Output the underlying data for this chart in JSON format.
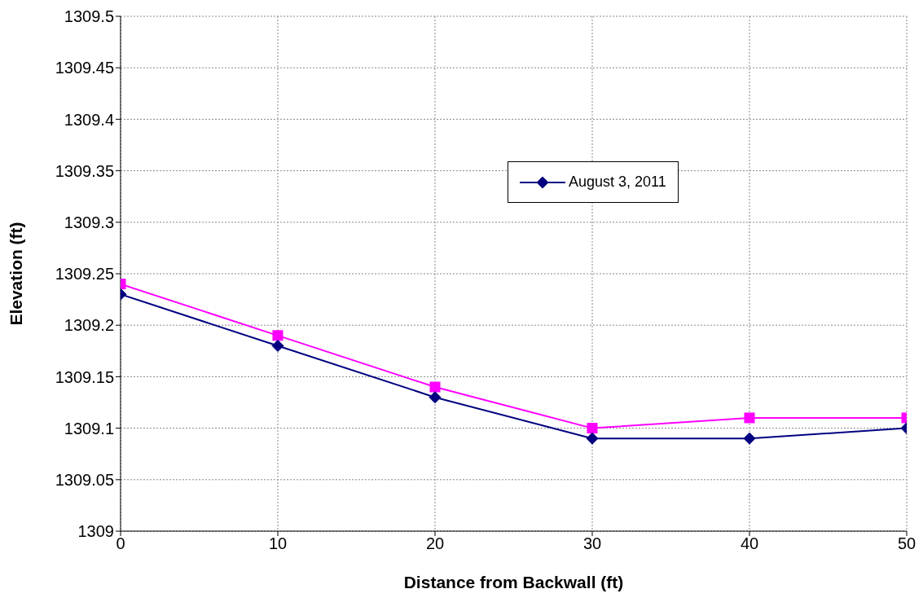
{
  "chart_data": {
    "type": "line",
    "xlabel": "Distance from Backwall (ft)",
    "ylabel": "Elevation (ft)",
    "x": [
      0,
      10,
      20,
      30,
      40,
      50
    ],
    "series": [
      {
        "name": "August 3, 2011",
        "color": "#000080",
        "marker": "diamond",
        "values": [
          1309.23,
          1309.18,
          1309.13,
          1309.09,
          1309.09,
          1309.1
        ]
      },
      {
        "color": "#ff00ff",
        "marker": "square",
        "values": [
          1309.24,
          1309.19,
          1309.14,
          1309.1,
          1309.11,
          1309.11
        ]
      }
    ],
    "xlim": [
      0,
      50
    ],
    "xticks": [
      0,
      10,
      20,
      30,
      40,
      50
    ],
    "ylim": [
      1309,
      1309.5
    ],
    "yticks": [
      1309,
      1309.05,
      1309.1,
      1309.15,
      1309.2,
      1309.25,
      1309.3,
      1309.35,
      1309.4,
      1309.45,
      1309.5
    ],
    "grid": true,
    "legend": "top right",
    "line_style": "solid"
  }
}
